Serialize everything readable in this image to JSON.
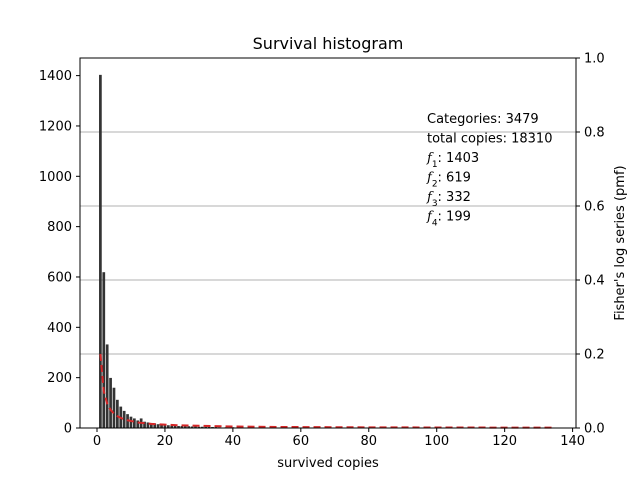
{
  "chart_data": {
    "type": "bar",
    "title": "Survival histogram",
    "xlabel": "survived copies",
    "ylabel_left": "",
    "ylabel_right": "Fisher's log series (pmf)",
    "xlim": [
      -5,
      141
    ],
    "ylim_left": [
      0,
      1470
    ],
    "ylim_right": [
      0,
      1.0
    ],
    "x_ticks": [
      0,
      20,
      40,
      60,
      80,
      100,
      120,
      140
    ],
    "y_ticks_left": [
      0,
      200,
      400,
      600,
      800,
      1000,
      1200,
      1400
    ],
    "y_ticks_right": [
      0.0,
      0.2,
      0.4,
      0.6,
      0.8,
      1.0
    ],
    "y_tick_labels_right": [
      "0.0",
      "0.2",
      "0.4",
      "0.6",
      "0.8",
      "1.0"
    ],
    "grid": "right-axis horizontal",
    "bar_color": "#333333",
    "fit_color": "#d62728",
    "grid_color": "#b0b0b0",
    "bars": {
      "x": [
        1,
        2,
        3,
        4,
        5,
        6,
        7,
        8,
        9,
        10,
        11,
        12,
        13,
        14,
        15,
        16,
        17,
        18,
        19,
        20,
        21,
        22,
        23,
        24,
        25,
        26,
        27,
        28,
        29,
        30,
        31,
        32,
        33,
        34,
        35,
        36,
        38,
        40,
        42,
        45,
        48,
        50,
        55,
        60,
        65,
        70,
        75,
        80,
        90,
        100,
        110,
        120,
        134
      ],
      "values": [
        1403,
        619,
        332,
        199,
        160,
        112,
        85,
        68,
        55,
        45,
        38,
        30,
        38,
        25,
        22,
        20,
        18,
        15,
        13,
        12,
        11,
        10,
        9,
        8,
        8,
        7,
        7,
        6,
        6,
        5,
        5,
        5,
        4,
        4,
        4,
        3,
        3,
        3,
        2,
        2,
        2,
        2,
        2,
        1,
        1,
        1,
        1,
        1,
        1,
        1,
        1,
        1,
        1
      ]
    },
    "fit_series": {
      "name": "Fisher's log series (pmf)",
      "x": [
        1,
        2,
        3,
        4,
        5,
        6,
        7,
        8,
        9,
        10,
        12,
        14,
        16,
        18,
        20,
        25,
        30,
        40,
        50,
        60,
        80,
        100,
        120,
        134
      ],
      "pmf": [
        0.2,
        0.099,
        0.066,
        0.049,
        0.039,
        0.032,
        0.027,
        0.024,
        0.021,
        0.019,
        0.015,
        0.013,
        0.011,
        0.01,
        0.009,
        0.007,
        0.006,
        0.004,
        0.003,
        0.0025,
        0.0018,
        0.0014,
        0.0011,
        0.001
      ]
    },
    "annotation": {
      "lines": [
        {
          "text": "Categories: 3479"
        },
        {
          "text": "total copies: 18310"
        },
        {
          "sym": "f",
          "sub": "1",
          "value": ": 1403"
        },
        {
          "sym": "f",
          "sub": "2",
          "value": ": 619"
        },
        {
          "sym": "f",
          "sub": "3",
          "value": ": 332"
        },
        {
          "sym": "f",
          "sub": "4",
          "value": ": 199"
        }
      ]
    }
  }
}
